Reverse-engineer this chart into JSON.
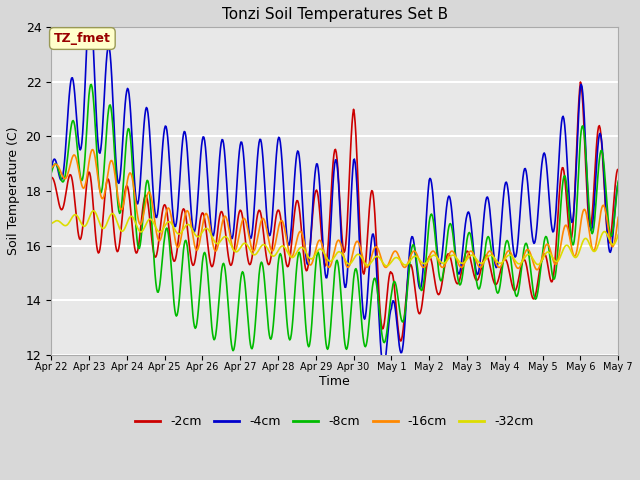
{
  "title": "Tonzi Soil Temperatures Set B",
  "xlabel": "Time",
  "ylabel": "Soil Temperature (C)",
  "ylim": [
    12,
    24
  ],
  "yticks": [
    12,
    14,
    16,
    18,
    20,
    22,
    24
  ],
  "annotation_text": "TZ_fmet",
  "annotation_color": "#990000",
  "annotation_bg": "#ffffcc",
  "bg_inner": "#e8e8e8",
  "grid_color": "#ffffff",
  "series_order": [
    "-2cm",
    "-4cm",
    "-8cm",
    "-16cm",
    "-32cm"
  ],
  "series": {
    "-2cm": {
      "color": "#cc0000",
      "lw": 1.2
    },
    "-4cm": {
      "color": "#0000cc",
      "lw": 1.2
    },
    "-8cm": {
      "color": "#00bb00",
      "lw": 1.2
    },
    "-16cm": {
      "color": "#ff8800",
      "lw": 1.2
    },
    "-32cm": {
      "color": "#dddd00",
      "lw": 1.2
    }
  },
  "xtick_labels": [
    "Apr 22",
    "Apr 23",
    "Apr 24",
    "Apr 25",
    "Apr 26",
    "Apr 27",
    "Apr 28",
    "Apr 29",
    "Apr 30",
    "May 1",
    "May 2",
    "May 3",
    "May 4",
    "May 5",
    "May 6",
    "May 7"
  ],
  "n_days": 15,
  "pts_per_day": 48,
  "series_params": {
    "-2cm": {
      "trend": [
        18.2,
        17.2,
        17.0,
        16.5,
        16.2,
        16.3,
        16.3,
        16.5,
        18.5,
        13.5,
        14.8,
        15.3,
        15.0,
        14.7,
        19.5,
        17.3
      ],
      "amp": [
        0.3,
        1.5,
        1.2,
        1.0,
        1.0,
        1.0,
        1.0,
        1.5,
        2.5,
        1.5,
        0.8,
        0.5,
        0.5,
        0.8,
        2.5,
        1.5
      ],
      "phase": 1.5
    },
    "-4cm": {
      "trend": [
        18.3,
        22.5,
        19.8,
        18.6,
        18.2,
        18.0,
        18.2,
        17.0,
        16.8,
        12.3,
        17.0,
        16.0,
        16.8,
        17.8,
        19.5,
        16.9
      ],
      "amp": [
        0.5,
        2.5,
        2.0,
        1.8,
        1.8,
        1.8,
        1.8,
        2.0,
        2.5,
        1.5,
        1.5,
        1.2,
        1.5,
        1.5,
        2.5,
        1.5
      ],
      "phase": 1.2
    },
    "-8cm": {
      "trend": [
        18.5,
        20.2,
        18.7,
        15.2,
        14.3,
        13.5,
        14.2,
        14.0,
        13.7,
        13.5,
        16.0,
        15.5,
        15.2,
        15.0,
        18.5,
        17.5
      ],
      "amp": [
        0.2,
        1.8,
        1.8,
        1.5,
        1.5,
        1.5,
        1.5,
        1.8,
        1.5,
        1.0,
        1.2,
        1.0,
        1.0,
        1.0,
        2.0,
        1.2
      ],
      "phase": 0.8
    },
    "-16cm": {
      "trend": [
        18.8,
        18.8,
        18.0,
        16.7,
        16.5,
        16.4,
        16.4,
        15.7,
        15.7,
        15.5,
        15.5,
        15.5,
        15.5,
        15.5,
        16.5,
        16.8
      ],
      "amp": [
        0.1,
        0.8,
        0.8,
        0.7,
        0.7,
        0.6,
        0.6,
        0.5,
        0.5,
        0.3,
        0.3,
        0.3,
        0.3,
        0.4,
        0.8,
        0.8
      ],
      "phase": 0.3
    },
    "-32cm": {
      "trend": [
        16.8,
        17.0,
        16.8,
        16.7,
        16.5,
        15.9,
        15.8,
        15.7,
        15.5,
        15.4,
        15.5,
        15.5,
        15.5,
        15.5,
        15.9,
        16.4
      ],
      "amp": [
        0.05,
        0.3,
        0.3,
        0.2,
        0.2,
        0.2,
        0.2,
        0.2,
        0.2,
        0.15,
        0.15,
        0.15,
        0.15,
        0.2,
        0.3,
        0.3
      ],
      "phase": 0.0
    }
  }
}
